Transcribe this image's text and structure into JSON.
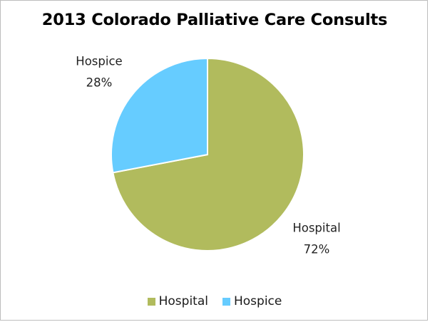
{
  "chart_data": {
    "type": "pie",
    "title": "2013 Colorado Palliative Care Consults",
    "categories": [
      "Hospital",
      "Hospice"
    ],
    "values": [
      72,
      28
    ],
    "unit": "%",
    "data_labels": [
      "72%",
      "28%"
    ],
    "colors": [
      "#b1bb5d",
      "#66ccff"
    ],
    "legend": {
      "position": "bottom",
      "entries": [
        "Hospital",
        "Hospice"
      ]
    }
  }
}
